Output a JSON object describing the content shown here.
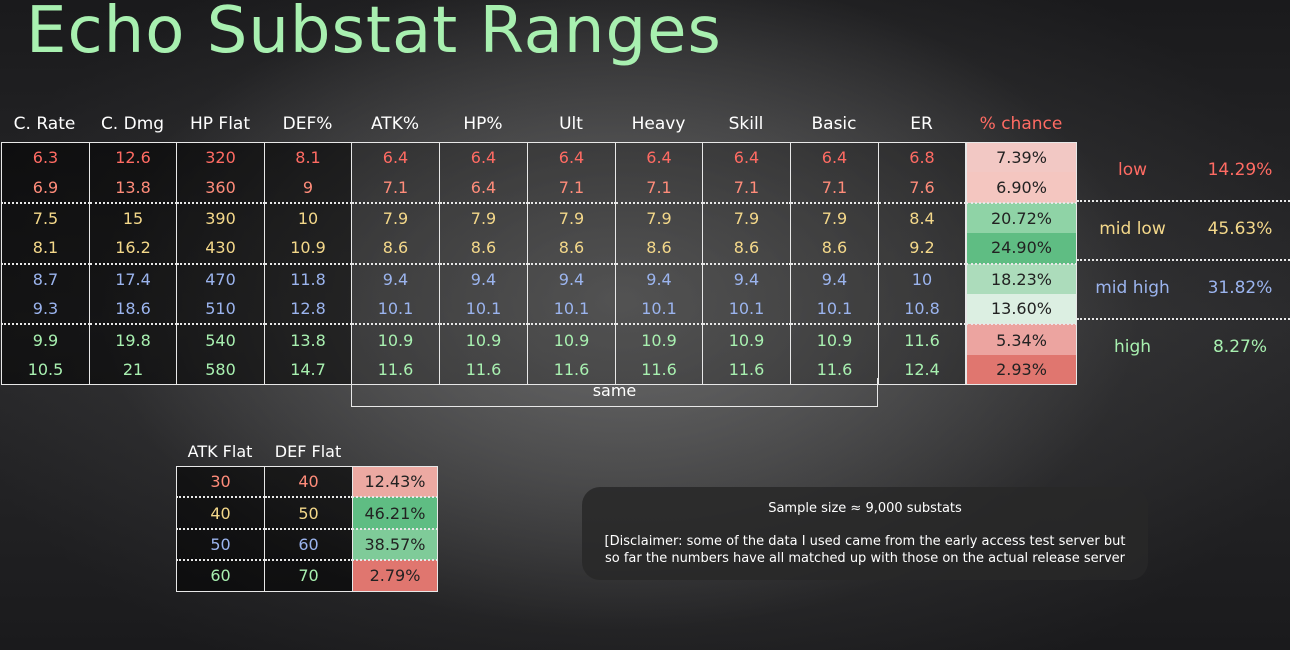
{
  "title": "Echo Substat Ranges",
  "headers": [
    "C. Rate",
    "C. Dmg",
    "HP Flat",
    "DEF%",
    "ATK%",
    "HP%",
    "Ult",
    "Heavy",
    "Skill",
    "Basic",
    "ER"
  ],
  "pct_header": "% chance",
  "rows": [
    {
      "values": [
        "6.3",
        "12.6",
        "320",
        "8.1",
        "6.4",
        "6.4",
        "6.4",
        "6.4",
        "6.4",
        "6.4",
        "6.8"
      ],
      "pct": "7.39%",
      "color": "#f2c8c4"
    },
    {
      "values": [
        "6.9",
        "13.8",
        "360",
        "9",
        "7.1",
        "6.4",
        "7.1",
        "7.1",
        "7.1",
        "7.1",
        "7.6"
      ],
      "pct": "6.90%",
      "color": "#f4c6c0"
    },
    {
      "values": [
        "7.5",
        "15",
        "390",
        "10",
        "7.9",
        "7.9",
        "7.9",
        "7.9",
        "7.9",
        "7.9",
        "8.4"
      ],
      "pct": "20.72%",
      "color": "#8fd3a6"
    },
    {
      "values": [
        "8.1",
        "16.2",
        "430",
        "10.9",
        "8.6",
        "8.6",
        "8.6",
        "8.6",
        "8.6",
        "8.6",
        "9.2"
      ],
      "pct": "24.90%",
      "color": "#5fbd83"
    },
    {
      "values": [
        "8.7",
        "17.4",
        "470",
        "11.8",
        "9.4",
        "9.4",
        "9.4",
        "9.4",
        "9.4",
        "9.4",
        "10"
      ],
      "pct": "18.23%",
      "color": "#acdcbb"
    },
    {
      "values": [
        "9.3",
        "18.6",
        "510",
        "12.8",
        "10.1",
        "10.1",
        "10.1",
        "10.1",
        "10.1",
        "10.1",
        "10.8"
      ],
      "pct": "13.60%",
      "color": "#dcefe2"
    },
    {
      "values": [
        "9.9",
        "19.8",
        "540",
        "13.8",
        "10.9",
        "10.9",
        "10.9",
        "10.9",
        "10.9",
        "10.9",
        "11.6"
      ],
      "pct": "5.34%",
      "color": "#eca4a0"
    },
    {
      "values": [
        "10.5",
        "21",
        "580",
        "14.7",
        "11.6",
        "11.6",
        "11.6",
        "11.6",
        "11.6",
        "11.6",
        "12.4"
      ],
      "pct": "2.93%",
      "color": "#e0766f"
    }
  ],
  "same_label": "same",
  "bands": [
    {
      "label": "low",
      "value": "14.29%",
      "color": "#ff6b63"
    },
    {
      "label": "mid low",
      "value": "45.63%",
      "color": "#f4d88a"
    },
    {
      "label": "mid high",
      "value": "31.82%",
      "color": "#9bb4ee"
    },
    {
      "label": "high",
      "value": "8.27%",
      "color": "#a8f0b0"
    }
  ],
  "flat_headers": [
    "ATK Flat",
    "DEF Flat"
  ],
  "flat_rows": [
    {
      "atk": "30",
      "def": "40",
      "pct": "12.43%",
      "color": "#eca9a2"
    },
    {
      "atk": "40",
      "def": "50",
      "pct": "46.21%",
      "color": "#5fbd83"
    },
    {
      "atk": "50",
      "def": "60",
      "pct": "38.57%",
      "color": "#7fcb99"
    },
    {
      "atk": "60",
      "def": "70",
      "pct": "2.79%",
      "color": "#e0766f"
    }
  ],
  "note": {
    "sample": "Sample size ≈ 9,000 substats",
    "disclaimer_line1": "[Disclaimer: some of the data I used came from the early access test server but",
    "disclaimer_line2": "so far the numbers have all matched up with those on the actual release server"
  }
}
